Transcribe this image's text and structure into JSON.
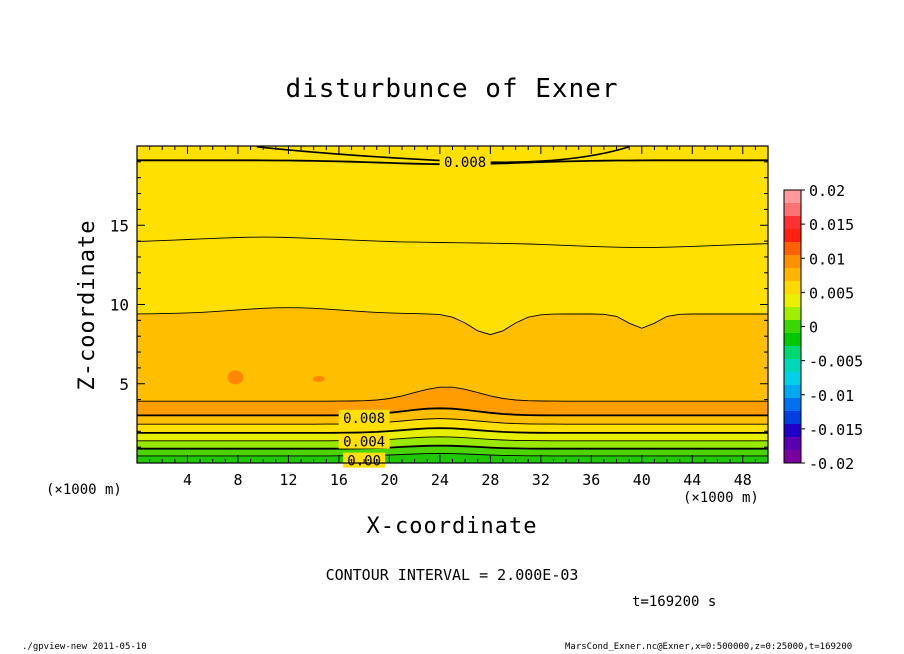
{
  "chart_data": {
    "type": "contour",
    "title": "disturbunce of Exner",
    "xlabel": "X-coordinate",
    "ylabel": "Z-coordinate",
    "x_unit_left": "(×1000 m)",
    "x_unit_right": "(×1000 m)",
    "xlim": [
      0,
      50
    ],
    "ylim": [
      0,
      20
    ],
    "x_ticks": [
      4,
      8,
      12,
      16,
      20,
      24,
      28,
      32,
      36,
      40,
      44,
      48
    ],
    "y_ticks": [
      5,
      10,
      15
    ],
    "colorbar": {
      "labels": [
        "0.02",
        "0.015",
        "0.01",
        "0.005",
        "0",
        "-0.005",
        "-0.01",
        "-0.015",
        "-0.02"
      ],
      "values": [
        0.02,
        0.015,
        0.01,
        0.005,
        0,
        -0.005,
        -0.01,
        -0.015,
        -0.02
      ],
      "colors_top_to_bottom": [
        "#ff9a9a",
        "#ff7272",
        "#ff3030",
        "#ff2010",
        "#ff6000",
        "#ff9000",
        "#ffb400",
        "#ffd800",
        "#eaf000",
        "#9ef000",
        "#3ad800",
        "#00c800",
        "#00d870",
        "#00d8b8",
        "#00d0e8",
        "#00a8f0",
        "#0070f0",
        "#0040e0",
        "#2000c8",
        "#5a00b0",
        "#7a00a0"
      ]
    },
    "contour_labels": [
      {
        "text": "0.008",
        "x": 26,
        "z": 19.0
      },
      {
        "text": "0.008",
        "x": 18,
        "z": 2.85
      },
      {
        "text": "0.004",
        "x": 18,
        "z": 1.35
      },
      {
        "text": "0.00",
        "x": 18,
        "z": 0.15
      }
    ],
    "field_levels": [
      {
        "level": "upper yellow",
        "range": [
          0.006,
          0.008
        ],
        "z_bottom": 14.0
      },
      {
        "level": "orange-yellow",
        "range": [
          0.008,
          0.01
        ],
        "z_bottom": 9.2
      },
      {
        "level": "orange",
        "range": [
          0.01,
          0.012
        ],
        "z_bottom": 3.8
      }
    ],
    "contour_interval": "CONTOUR INTERVAL = 2.000E-03",
    "time": "t=169200 s"
  },
  "footer": {
    "left": "./gpview-new   2011-05-10",
    "right": "MarsCond_Exner.nc@Exner,x=0:500000,z=0:25000,t=169200"
  },
  "colors": {
    "yellow_light": "#ffe000",
    "yellow_orange": "#ffbf00",
    "orange": "#ff9c00",
    "orange_dark": "#ff8800",
    "yellow_green": "#e6ef00",
    "lime": "#99e800",
    "green": "#4cd400",
    "green_dark": "#1fc800"
  }
}
